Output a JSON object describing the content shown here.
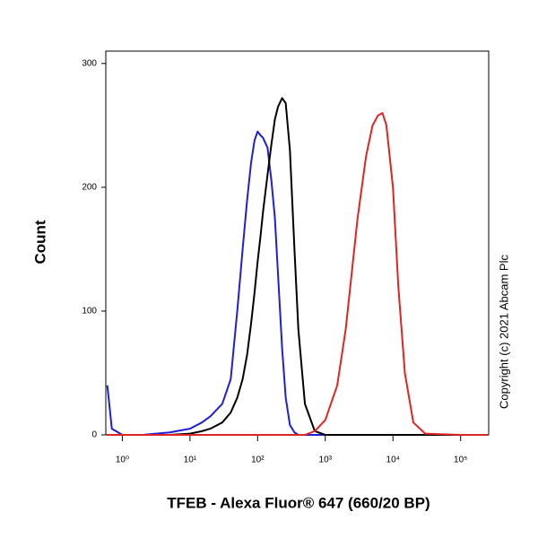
{
  "chart_data": {
    "type": "line",
    "x_label": "TFEB - Alexa Fluor® 647 (660/20 BP)",
    "y_label": "Count",
    "annotation": "Copyright (c) 2021 Abcam Plc",
    "x_scale": "log",
    "xlim": [
      0.57,
      260000
    ],
    "xticks": [
      {
        "value": 1,
        "label": "10⁰"
      },
      {
        "value": 10,
        "label": "10¹"
      },
      {
        "value": 100,
        "label": "10²"
      },
      {
        "value": 1000,
        "label": "10³"
      },
      {
        "value": 10000,
        "label": "10⁴"
      },
      {
        "value": 100000,
        "label": "10⁵"
      }
    ],
    "ylim": [
      0,
      310
    ],
    "yticks": [
      0,
      100,
      200,
      300
    ],
    "x": [
      0.6,
      0.7,
      1,
      2,
      5,
      10,
      15,
      20,
      30,
      40,
      50,
      60,
      70,
      80,
      90,
      100,
      110,
      120,
      140,
      160,
      180,
      200,
      230,
      260,
      300,
      350,
      400,
      500,
      700,
      1000,
      1500,
      2000,
      3000,
      4000,
      5000,
      6000,
      7000,
      8000,
      10000,
      12000,
      15000,
      20000,
      30000,
      100000,
      250000
    ],
    "series": [
      {
        "color": "#1f1fd6",
        "values": [
          40,
          5,
          0,
          0,
          2,
          5,
          10,
          15,
          25,
          45,
          100,
          150,
          190,
          220,
          238,
          245,
          242,
          240,
          232,
          205,
          175,
          130,
          70,
          30,
          8,
          2,
          0,
          0,
          0,
          0,
          0,
          0,
          0,
          0,
          0,
          0,
          0,
          0,
          0,
          0,
          0,
          0,
          0,
          0,
          0
        ]
      },
      {
        "color": "#000000",
        "values": [
          0,
          0,
          0,
          0,
          0,
          1,
          3,
          5,
          10,
          18,
          30,
          45,
          65,
          90,
          115,
          140,
          160,
          180,
          210,
          235,
          255,
          265,
          272,
          268,
          230,
          150,
          85,
          25,
          3,
          0,
          0,
          0,
          0,
          0,
          0,
          0,
          0,
          0,
          0,
          0,
          0,
          0,
          0,
          0,
          0
        ]
      },
      {
        "color": "#e02424",
        "values": [
          0,
          0,
          0,
          0,
          0,
          0,
          0,
          0,
          0,
          0,
          0,
          0,
          0,
          0,
          0,
          0,
          0,
          0,
          0,
          0,
          0,
          0,
          0,
          0,
          0,
          0,
          0,
          0,
          3,
          12,
          40,
          85,
          175,
          225,
          250,
          258,
          260,
          250,
          200,
          120,
          50,
          10,
          1,
          0,
          0
        ]
      }
    ]
  }
}
